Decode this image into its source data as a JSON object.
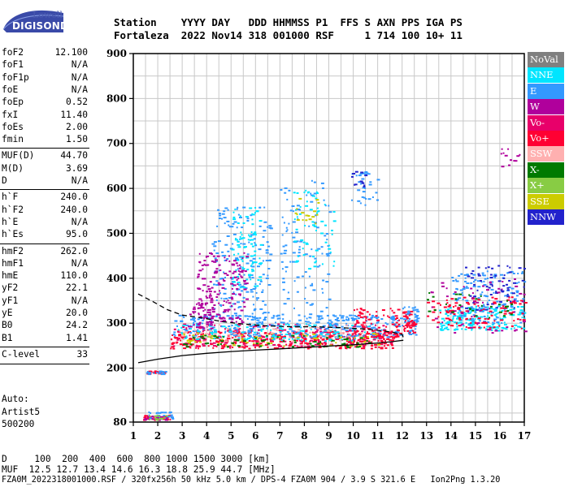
{
  "logo": {
    "top": "Lowell",
    "bottom": "DIGISONDE"
  },
  "header": {
    "line1": "Station    YYYY DAY   DDD HHMMSS P1  FFS S AXN PPS IGA PS",
    "line2": "Fortaleza  2022 Nov14 318 001000 RSF     1 714 100 10+ 11"
  },
  "params": [
    {
      "k": "foF2",
      "v": "12.100"
    },
    {
      "k": "foF1",
      "v": "N/A"
    },
    {
      "k": "foF1p",
      "v": "N/A"
    },
    {
      "k": "foE",
      "v": "N/A"
    },
    {
      "k": "foEp",
      "v": "0.52"
    },
    {
      "k": "fxI",
      "v": "11.40"
    },
    {
      "k": "foEs",
      "v": "2.00"
    },
    {
      "k": "fmin",
      "v": "1.50"
    },
    {
      "k": "MUF(D)",
      "v": "44.70"
    },
    {
      "k": "M(D)",
      "v": "3.69"
    },
    {
      "k": "D",
      "v": "N/A"
    },
    {
      "k": "h`F",
      "v": "240.0"
    },
    {
      "k": "h`F2",
      "v": "240.0"
    },
    {
      "k": "h`E",
      "v": "N/A"
    },
    {
      "k": "h`Es",
      "v": "95.0"
    },
    {
      "k": "hmF2",
      "v": "262.0"
    },
    {
      "k": "hmF1",
      "v": "N/A"
    },
    {
      "k": "hmE",
      "v": "110.0"
    },
    {
      "k": "yF2",
      "v": "22.1"
    },
    {
      "k": "yF1",
      "v": "N/A"
    },
    {
      "k": "yE",
      "v": "20.0"
    },
    {
      "k": "B0",
      "v": "24.2"
    },
    {
      "k": "B1",
      "v": "1.41"
    },
    {
      "k": "C-level",
      "v": "33"
    }
  ],
  "auto": {
    "l1": "Auto:",
    "l2": "Artist5",
    "l3": "500200"
  },
  "legend": [
    {
      "label": "NoVal",
      "color": "#808080"
    },
    {
      "label": "NNE",
      "color": "#00e5ff"
    },
    {
      "label": "E",
      "color": "#3399ff"
    },
    {
      "label": "W",
      "color": "#b0009c"
    },
    {
      "label": "Vo-",
      "color": "#e8006a"
    },
    {
      "label": "Vo+",
      "color": "#ff0033"
    },
    {
      "label": "SSW",
      "color": "#ffb0b0"
    },
    {
      "label": "X-",
      "color": "#007a00"
    },
    {
      "label": "X+",
      "color": "#88cc44"
    },
    {
      "label": "SSE",
      "color": "#cccc00"
    },
    {
      "label": "NNW",
      "color": "#2222cc"
    }
  ],
  "footer": {
    "line1": "D     100  200  400  600  800 1000 1500 3000 [km]",
    "line2": "MUF  12.5 12.7 13.4 14.6 16.3 18.8 25.9 44.7 [MHz]",
    "line3": "FZA0M_2022318001000.RSF / 320fx256h 50 kHz 5.0 km / DPS-4 FZA0M 904 / 3.9 S 321.6 E   Ion2Png 1.3.20"
  },
  "chart_data": {
    "type": "scatter",
    "xlabel": "",
    "ylabel": "",
    "xlim": [
      1,
      17
    ],
    "ylim": [
      80,
      900
    ],
    "x_ticks": [
      1,
      2,
      3,
      4,
      5,
      6,
      7,
      8,
      9,
      10,
      11,
      12,
      13,
      14,
      15,
      16,
      17
    ],
    "y_ticks": [
      80,
      200,
      300,
      400,
      500,
      600,
      700,
      800,
      900
    ],
    "grid": true,
    "profile_dashed": [
      [
        1.2,
        365
      ],
      [
        1.8,
        348
      ],
      [
        2.4,
        330
      ],
      [
        3.0,
        318
      ],
      [
        3.8,
        312
      ],
      [
        4.6,
        304
      ],
      [
        5.5,
        298
      ],
      [
        6.5,
        294
      ],
      [
        7.5,
        292
      ],
      [
        8.5,
        292
      ],
      [
        9.5,
        290
      ],
      [
        10.5,
        287
      ],
      [
        11.2,
        283
      ],
      [
        11.6,
        280
      ],
      [
        12.0,
        275
      ],
      [
        12.05,
        268
      ]
    ],
    "profile_solid": [
      [
        1.2,
        212
      ],
      [
        2.0,
        220
      ],
      [
        3.0,
        228
      ],
      [
        4.0,
        233
      ],
      [
        5.0,
        237
      ],
      [
        6.0,
        240
      ],
      [
        7.0,
        243
      ],
      [
        8.0,
        246
      ],
      [
        9.0,
        249
      ],
      [
        10.0,
        252
      ],
      [
        11.0,
        256
      ],
      [
        11.6,
        259
      ],
      [
        12.05,
        262
      ]
    ],
    "clusters": [
      {
        "color": "#ff0033",
        "x": [
          2.5,
          11.8
        ],
        "y": [
          245,
          285
        ],
        "n": 420
      },
      {
        "color": "#e8006a",
        "x": [
          2.6,
          11.5
        ],
        "y": [
          250,
          300
        ],
        "n": 200
      },
      {
        "color": "#3399ff",
        "x": [
          2.6,
          12.0
        ],
        "y": [
          270,
          320
        ],
        "n": 320
      },
      {
        "color": "#00e5ff",
        "x": [
          2.8,
          11.0
        ],
        "y": [
          262,
          300
        ],
        "n": 120
      },
      {
        "color": "#3399ff",
        "x": [
          4.2,
          6.6
        ],
        "y": [
          310,
          560
        ],
        "n": 180
      },
      {
        "color": "#00e5ff",
        "x": [
          5.0,
          6.2
        ],
        "y": [
          380,
          560
        ],
        "n": 90
      },
      {
        "color": "#b0009c",
        "x": [
          3.6,
          5.6
        ],
        "y": [
          300,
          460
        ],
        "n": 170
      },
      {
        "color": "#b0009c",
        "x": [
          3.2,
          4.2
        ],
        "y": [
          290,
          350
        ],
        "n": 40
      },
      {
        "color": "#cccc00",
        "x": [
          3.0,
          11.0
        ],
        "y": [
          250,
          280
        ],
        "n": 60
      },
      {
        "color": "#007a00",
        "x": [
          3.0,
          11.0
        ],
        "y": [
          248,
          275
        ],
        "n": 60
      },
      {
        "color": "#ffb0b0",
        "x": [
          2.8,
          10.5
        ],
        "y": [
          260,
          300
        ],
        "n": 60
      },
      {
        "color": "#3399ff",
        "x": [
          7.0,
          9.0
        ],
        "y": [
          320,
          620
        ],
        "n": 110
      },
      {
        "color": "#00e5ff",
        "x": [
          7.5,
          9.2
        ],
        "y": [
          420,
          600
        ],
        "n": 60
      },
      {
        "color": "#cccc00",
        "x": [
          7.6,
          8.6
        ],
        "y": [
          520,
          580
        ],
        "n": 18
      },
      {
        "color": "#3399ff",
        "x": [
          9.8,
          11.0
        ],
        "y": [
          560,
          640
        ],
        "n": 30
      },
      {
        "color": "#2222cc",
        "x": [
          9.9,
          10.5
        ],
        "y": [
          590,
          640
        ],
        "n": 12
      },
      {
        "color": "#ff0033",
        "x": [
          10.0,
          11.9
        ],
        "y": [
          270,
          335
        ],
        "n": 80
      },
      {
        "color": "#3399ff",
        "x": [
          12.0,
          12.6
        ],
        "y": [
          275,
          340
        ],
        "n": 50
      },
      {
        "color": "#ff0033",
        "x": [
          12.0,
          12.5
        ],
        "y": [
          280,
          330
        ],
        "n": 40
      },
      {
        "color": "#00e5ff",
        "x": [
          13.5,
          17.0
        ],
        "y": [
          285,
          340
        ],
        "n": 180
      },
      {
        "color": "#3399ff",
        "x": [
          14.0,
          17.0
        ],
        "y": [
          300,
          420
        ],
        "n": 140
      },
      {
        "color": "#2222cc",
        "x": [
          14.5,
          17.0
        ],
        "y": [
          330,
          430
        ],
        "n": 60
      },
      {
        "color": "#ff0033",
        "x": [
          13.0,
          17.0
        ],
        "y": [
          290,
          360
        ],
        "n": 110
      },
      {
        "color": "#b0009c",
        "x": [
          13.0,
          17.0
        ],
        "y": [
          280,
          400
        ],
        "n": 60
      },
      {
        "color": "#007a00",
        "x": [
          13.0,
          16.5
        ],
        "y": [
          310,
          370
        ],
        "n": 30
      },
      {
        "color": "#b0009c",
        "x": [
          15.9,
          16.8
        ],
        "y": [
          650,
          690
        ],
        "n": 12
      },
      {
        "color": "#ff0033",
        "x": [
          1.5,
          2.3
        ],
        "y": [
          188,
          195
        ],
        "n": 20
      },
      {
        "color": "#3399ff",
        "x": [
          1.5,
          2.3
        ],
        "y": [
          188,
          195
        ],
        "n": 14
      },
      {
        "color": "#ff0033",
        "x": [
          1.4,
          2.5
        ],
        "y": [
          86,
          96
        ],
        "n": 30
      },
      {
        "color": "#3399ff",
        "x": [
          1.6,
          2.6
        ],
        "y": [
          88,
          104
        ],
        "n": 30
      },
      {
        "color": "#b0009c",
        "x": [
          1.4,
          2.4
        ],
        "y": [
          86,
          95
        ],
        "n": 16
      },
      {
        "color": "#88cc44",
        "x": [
          1.6,
          2.4
        ],
        "y": [
          86,
          98
        ],
        "n": 12
      }
    ]
  }
}
